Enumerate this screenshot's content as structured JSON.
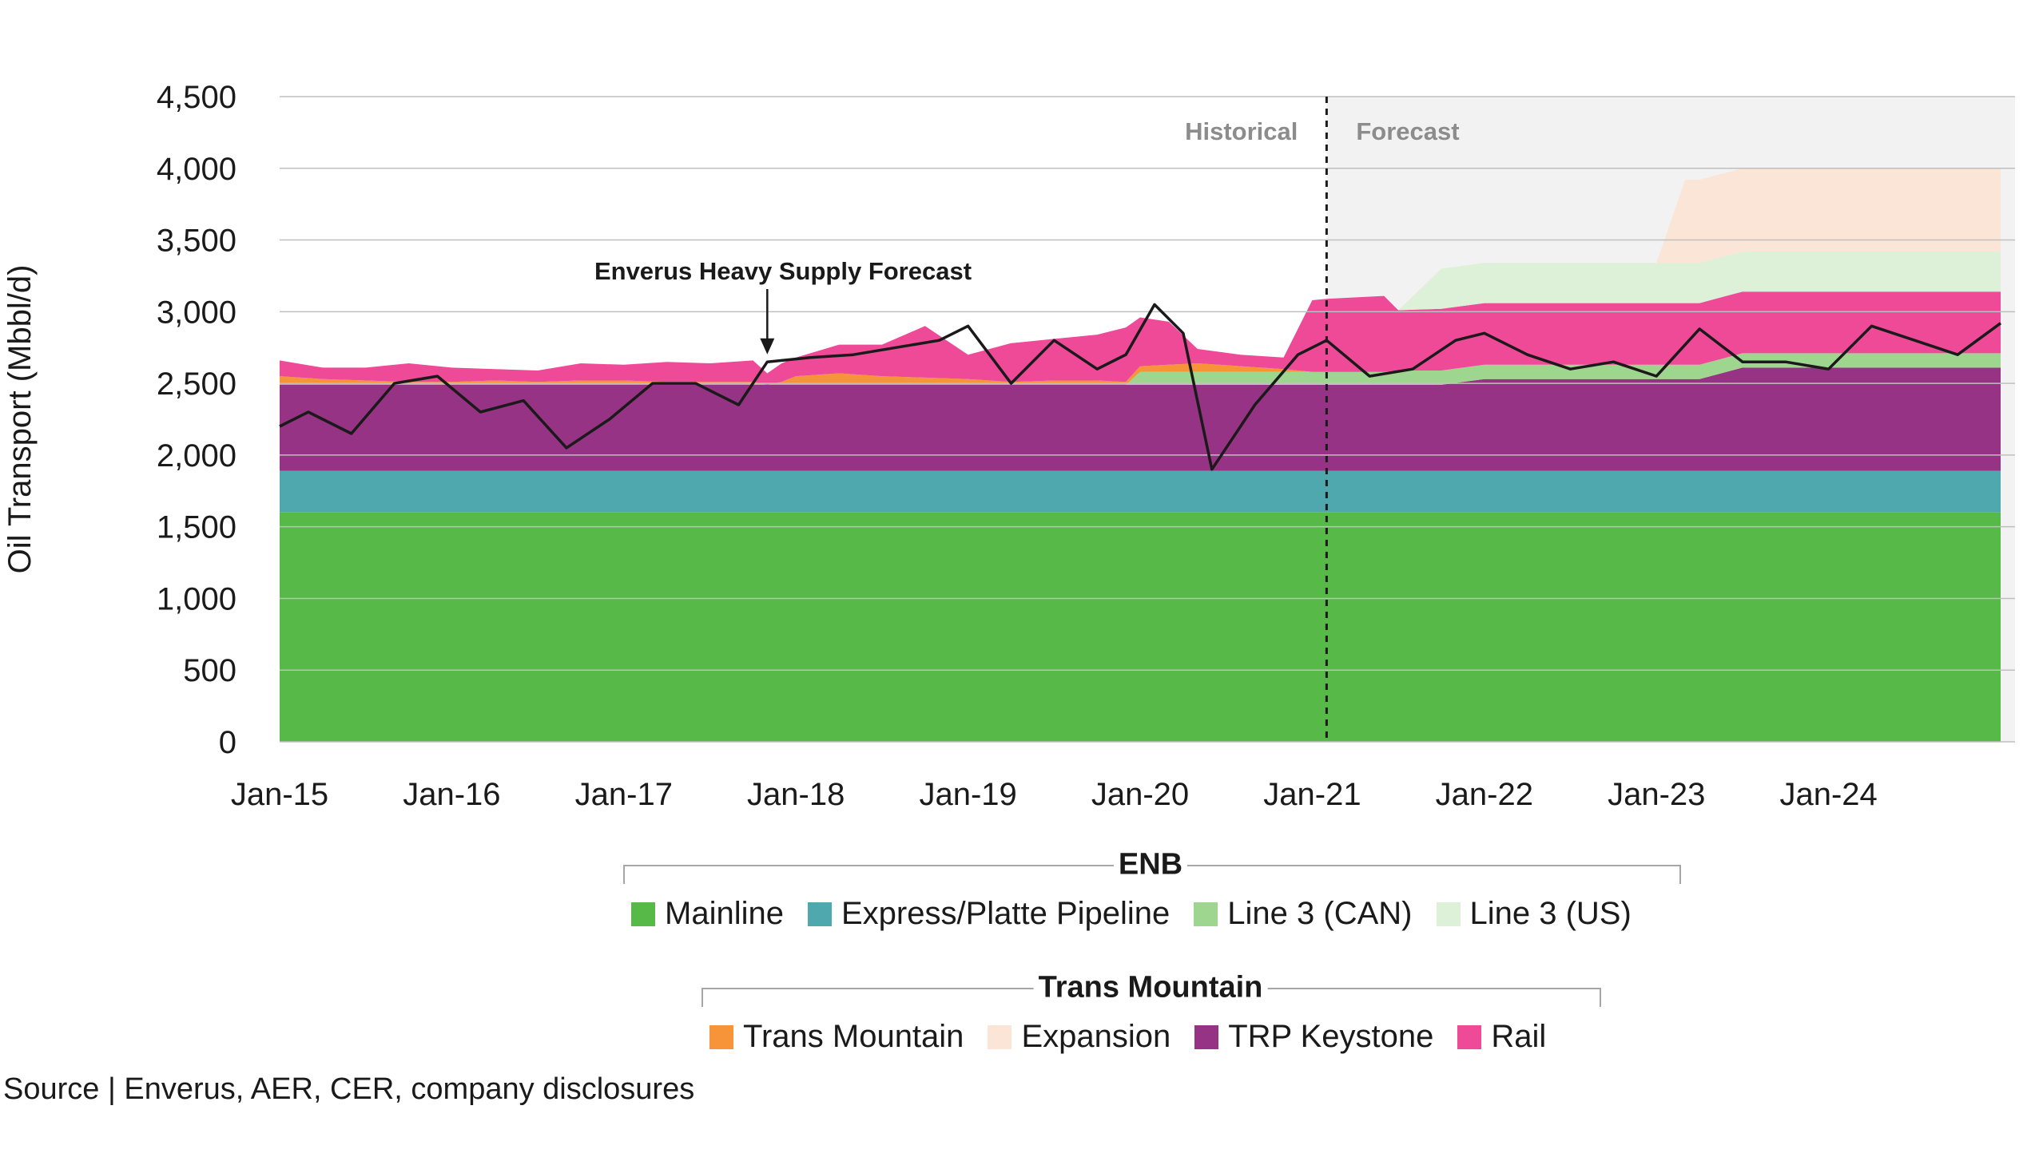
{
  "chart_data": {
    "type": "area",
    "ylabel": "Oil Transport (Mbbl/d)",
    "ylim": [
      0,
      4500
    ],
    "yticks": [
      0,
      500,
      1000,
      1500,
      2000,
      2500,
      3000,
      3500,
      4000,
      4500
    ],
    "ytick_labels": [
      "0",
      "500",
      "1,000",
      "1,500",
      "2,000",
      "2,500",
      "3,000",
      "3,500",
      "4,000",
      "4,500"
    ],
    "x_range": [
      "2015-01",
      "2025-02"
    ],
    "xtick_labels": [
      "Jan-15",
      "Jan-16",
      "Jan-17",
      "Jan-18",
      "Jan-19",
      "Jan-20",
      "Jan-21",
      "Jan-22",
      "Jan-23",
      "Jan-24"
    ],
    "xtick_dates": [
      "2015-01",
      "2016-01",
      "2017-01",
      "2018-01",
      "2019-01",
      "2020-01",
      "2021-01",
      "2022-01",
      "2023-01",
      "2024-01"
    ],
    "grid": true,
    "forecast_start": "2021-02",
    "historical_label": "Historical",
    "forecast_label": "Forecast",
    "annotation": {
      "text": "Enverus Heavy Supply Forecast",
      "x": "2017-11",
      "y": 2680
    },
    "x": [
      "2015-01",
      "2015-04",
      "2015-07",
      "2015-10",
      "2016-01",
      "2016-04",
      "2016-07",
      "2016-10",
      "2017-01",
      "2017-04",
      "2017-07",
      "2017-10",
      "2017-11",
      "2017-12",
      "2018-01",
      "2018-04",
      "2018-07",
      "2018-10",
      "2019-01",
      "2019-04",
      "2019-07",
      "2019-10",
      "2019-12",
      "2020-01",
      "2020-03",
      "2020-05",
      "2020-08",
      "2020-11",
      "2021-01",
      "2021-02",
      "2021-06",
      "2021-07",
      "2021-10",
      "2022-01",
      "2022-04",
      "2022-07",
      "2022-10",
      "2022-12",
      "2023-01",
      "2023-03",
      "2023-04",
      "2023-07",
      "2023-10",
      "2024-01",
      "2024-04",
      "2024-07",
      "2024-10",
      "2025-01"
    ],
    "series": [
      {
        "name": "Mainline",
        "group": "ENB",
        "color": "#57b947",
        "values": [
          1600,
          1600,
          1600,
          1600,
          1600,
          1600,
          1600,
          1600,
          1600,
          1600,
          1600,
          1600,
          1600,
          1600,
          1600,
          1600,
          1600,
          1600,
          1600,
          1600,
          1600,
          1600,
          1600,
          1600,
          1600,
          1600,
          1600,
          1600,
          1600,
          1600,
          1600,
          1600,
          1600,
          1600,
          1600,
          1600,
          1600,
          1600,
          1600,
          1600,
          1600,
          1600,
          1600,
          1600,
          1600,
          1600,
          1600,
          1600
        ]
      },
      {
        "name": "Express/Platte Pipeline",
        "group": "ENB",
        "color": "#4ea8ad",
        "values": [
          290,
          290,
          290,
          290,
          290,
          290,
          290,
          290,
          290,
          290,
          290,
          290,
          290,
          290,
          290,
          290,
          290,
          290,
          290,
          290,
          290,
          290,
          290,
          290,
          290,
          290,
          290,
          290,
          290,
          290,
          290,
          290,
          290,
          290,
          290,
          290,
          290,
          290,
          290,
          290,
          290,
          290,
          290,
          290,
          290,
          290,
          290,
          290
        ]
      },
      {
        "name": "TRP Keystone",
        "group": "Trans Mountain",
        "color": "#963384",
        "values": [
          600,
          600,
          600,
          600,
          600,
          600,
          600,
          600,
          600,
          600,
          600,
          600,
          600,
          600,
          600,
          600,
          600,
          600,
          600,
          600,
          600,
          600,
          600,
          600,
          600,
          600,
          600,
          600,
          600,
          600,
          600,
          600,
          600,
          640,
          640,
          640,
          640,
          640,
          640,
          640,
          640,
          720,
          720,
          720,
          720,
          720,
          720,
          720
        ]
      },
      {
        "name": "Line 3 (CAN)",
        "group": "ENB",
        "color": "#9fd68f",
        "values": [
          0,
          0,
          0,
          0,
          0,
          0,
          0,
          0,
          0,
          0,
          0,
          0,
          0,
          0,
          0,
          0,
          0,
          0,
          0,
          0,
          0,
          0,
          0,
          90,
          90,
          90,
          90,
          90,
          90,
          90,
          90,
          100,
          100,
          100,
          100,
          100,
          100,
          100,
          100,
          100,
          100,
          100,
          100,
          100,
          100,
          100,
          100,
          100
        ]
      },
      {
        "name": "Trans Mountain",
        "group": "Trans Mountain",
        "color": "#f7943a",
        "values": [
          60,
          40,
          30,
          20,
          20,
          30,
          20,
          30,
          30,
          20,
          20,
          20,
          0,
          20,
          60,
          80,
          60,
          50,
          40,
          20,
          30,
          30,
          20,
          40,
          50,
          60,
          40,
          20,
          0,
          0,
          0,
          0,
          0,
          0,
          0,
          0,
          0,
          0,
          0,
          0,
          0,
          0,
          0,
          0,
          0,
          0,
          0,
          0
        ]
      },
      {
        "name": "Rail",
        "group": "Trans Mountain",
        "color": "#ee4a98",
        "values": [
          110,
          80,
          90,
          130,
          100,
          80,
          80,
          120,
          110,
          140,
          130,
          150,
          80,
          130,
          130,
          200,
          220,
          360,
          170,
          270,
          290,
          320,
          380,
          340,
          300,
          100,
          80,
          80,
          500,
          510,
          530,
          420,
          430,
          430,
          430,
          430,
          430,
          430,
          430,
          430,
          430,
          430,
          430,
          430,
          430,
          430,
          430,
          430
        ]
      },
      {
        "name": "Line 3 (US)",
        "group": "ENB",
        "color": "#ddf0d8",
        "values": [
          0,
          0,
          0,
          0,
          0,
          0,
          0,
          0,
          0,
          0,
          0,
          0,
          0,
          0,
          0,
          0,
          0,
          0,
          0,
          0,
          0,
          0,
          0,
          0,
          0,
          0,
          0,
          0,
          0,
          0,
          0,
          0,
          280,
          280,
          280,
          280,
          280,
          280,
          280,
          280,
          280,
          280,
          280,
          280,
          280,
          280,
          280,
          280
        ]
      },
      {
        "name": "Expansion",
        "group": "Trans Mountain",
        "color": "#fbe5d6",
        "values": [
          0,
          0,
          0,
          0,
          0,
          0,
          0,
          0,
          0,
          0,
          0,
          0,
          0,
          0,
          0,
          0,
          0,
          0,
          0,
          0,
          0,
          0,
          0,
          0,
          0,
          0,
          0,
          0,
          0,
          0,
          0,
          0,
          0,
          0,
          0,
          0,
          0,
          0,
          0,
          580,
          580,
          580,
          580,
          580,
          580,
          580,
          580,
          580
        ]
      }
    ],
    "supply_forecast": {
      "x": [
        "2015-01",
        "2015-03",
        "2015-06",
        "2015-09",
        "2015-12",
        "2016-03",
        "2016-06",
        "2016-09",
        "2016-12",
        "2017-03",
        "2017-06",
        "2017-09",
        "2017-11",
        "2018-02",
        "2018-05",
        "2018-08",
        "2018-11",
        "2019-01",
        "2019-04",
        "2019-07",
        "2019-10",
        "2019-12",
        "2020-02",
        "2020-04",
        "2020-06",
        "2020-09",
        "2020-12",
        "2021-02",
        "2021-05",
        "2021-08",
        "2021-11",
        "2022-01",
        "2022-04",
        "2022-07",
        "2022-10",
        "2023-01",
        "2023-04",
        "2023-07",
        "2023-10",
        "2024-01",
        "2024-04",
        "2024-07",
        "2024-10",
        "2025-01"
      ],
      "values": [
        2200,
        2300,
        2150,
        2500,
        2550,
        2300,
        2380,
        2050,
        2250,
        2500,
        2500,
        2350,
        2650,
        2680,
        2700,
        2750,
        2800,
        2900,
        2500,
        2800,
        2600,
        2700,
        3050,
        2850,
        1900,
        2350,
        2700,
        2800,
        2550,
        2600,
        2800,
        2850,
        2700,
        2600,
        2650,
        2550,
        2880,
        2650,
        2650,
        2600,
        2900,
        2800,
        2700,
        2920
      ]
    }
  },
  "legend": {
    "enb_title": "ENB",
    "enb_items": [
      {
        "label": "Mainline",
        "color": "#57b947"
      },
      {
        "label": "Express/Platte Pipeline",
        "color": "#4ea8ad"
      },
      {
        "label": "Line 3 (CAN)",
        "color": "#9fd68f"
      },
      {
        "label": "Line 3 (US)",
        "color": "#ddf0d8"
      }
    ],
    "tm_title": "Trans Mountain",
    "tm_items": [
      {
        "label": "Trans Mountain",
        "color": "#f7943a"
      },
      {
        "label": "Expansion",
        "color": "#fbe5d6"
      },
      {
        "label": "TRP Keystone",
        "color": "#963384"
      },
      {
        "label": "Rail",
        "color": "#ee4a98"
      }
    ]
  },
  "source": "Source | Enverus, AER, CER, company disclosures"
}
